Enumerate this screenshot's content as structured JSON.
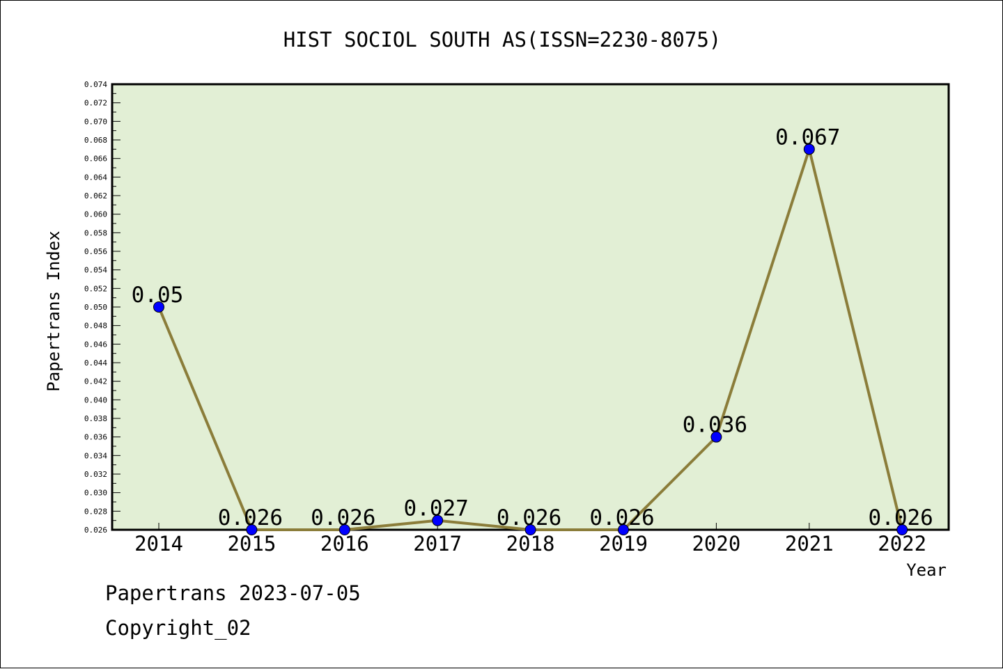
{
  "chart_data": {
    "type": "line",
    "title": "HIST SOCIOL SOUTH AS(ISSN=2230-8075)",
    "xlabel": "Year",
    "ylabel": "Papertrans Index",
    "x": [
      "2014",
      "2015",
      "2016",
      "2017",
      "2018",
      "2019",
      "2020",
      "2021",
      "2022"
    ],
    "series": [
      {
        "values": [
          0.05,
          0.026,
          0.026,
          0.027,
          0.026,
          0.026,
          0.036,
          0.067,
          0.026
        ],
        "labels": [
          "0.05",
          "0.026",
          "0.026",
          "0.027",
          "0.026",
          "0.026",
          "0.036",
          "0.067",
          "0.026"
        ]
      }
    ],
    "ylim": [
      0.026,
      0.074
    ],
    "yticks": [
      "0.026",
      "0.028",
      "0.030",
      "0.032",
      "0.034",
      "0.036",
      "0.038",
      "0.040",
      "0.042",
      "0.044",
      "0.046",
      "0.048",
      "0.050",
      "0.052",
      "0.054",
      "0.056",
      "0.058",
      "0.060",
      "0.062",
      "0.064",
      "0.066",
      "0.068",
      "0.070",
      "0.072",
      "0.074"
    ],
    "grid": false,
    "legend": "none",
    "colors": {
      "plot_bg": "#e2efd5",
      "line": "#8b7d3a",
      "marker": "#0000ff"
    }
  },
  "footer": {
    "line1": "Papertrans 2023-07-05",
    "line2": "Copyright_02"
  }
}
